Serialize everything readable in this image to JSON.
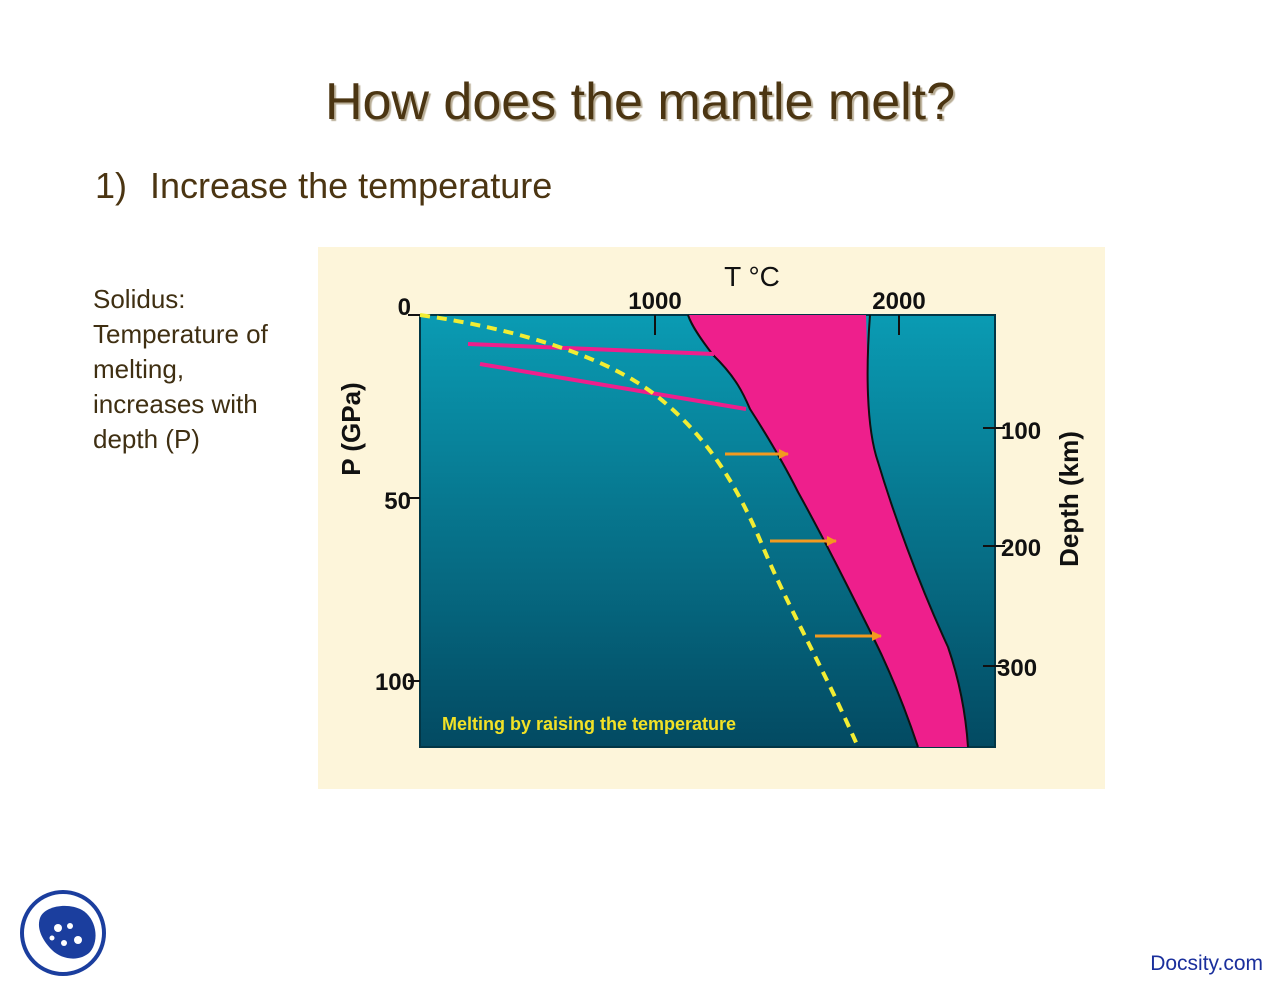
{
  "title": "How does the mantle melt?",
  "bullet": {
    "number": "1)",
    "text": "Increase the temperature"
  },
  "side_note": {
    "lines": [
      "Solidus:",
      "Temperature of",
      "melting,",
      "increases with",
      "depth (P)"
    ]
  },
  "figure": {
    "top_axis_title": "T °C",
    "top_ticks": [
      "1000",
      "2000"
    ],
    "left_axis_title": "P (GPa)",
    "left_ticks": [
      "0",
      "50",
      "100"
    ],
    "right_axis_title": "Depth (km)",
    "right_ticks": [
      "100",
      "200",
      "300"
    ],
    "caption": "Melting by raising the temperature",
    "colors": {
      "background": "#fdf5da",
      "mantle_top": "#0a9bb3",
      "mantle_bottom": "#034a62",
      "melt_region": "#ee1f8c",
      "solidus_curve": "#f2ed33",
      "arrow": "#f29a1f",
      "caption": "#f2e126"
    }
  },
  "footer": {
    "link": "Docsity.com",
    "logo_icon": "docsity-logo-icon"
  }
}
